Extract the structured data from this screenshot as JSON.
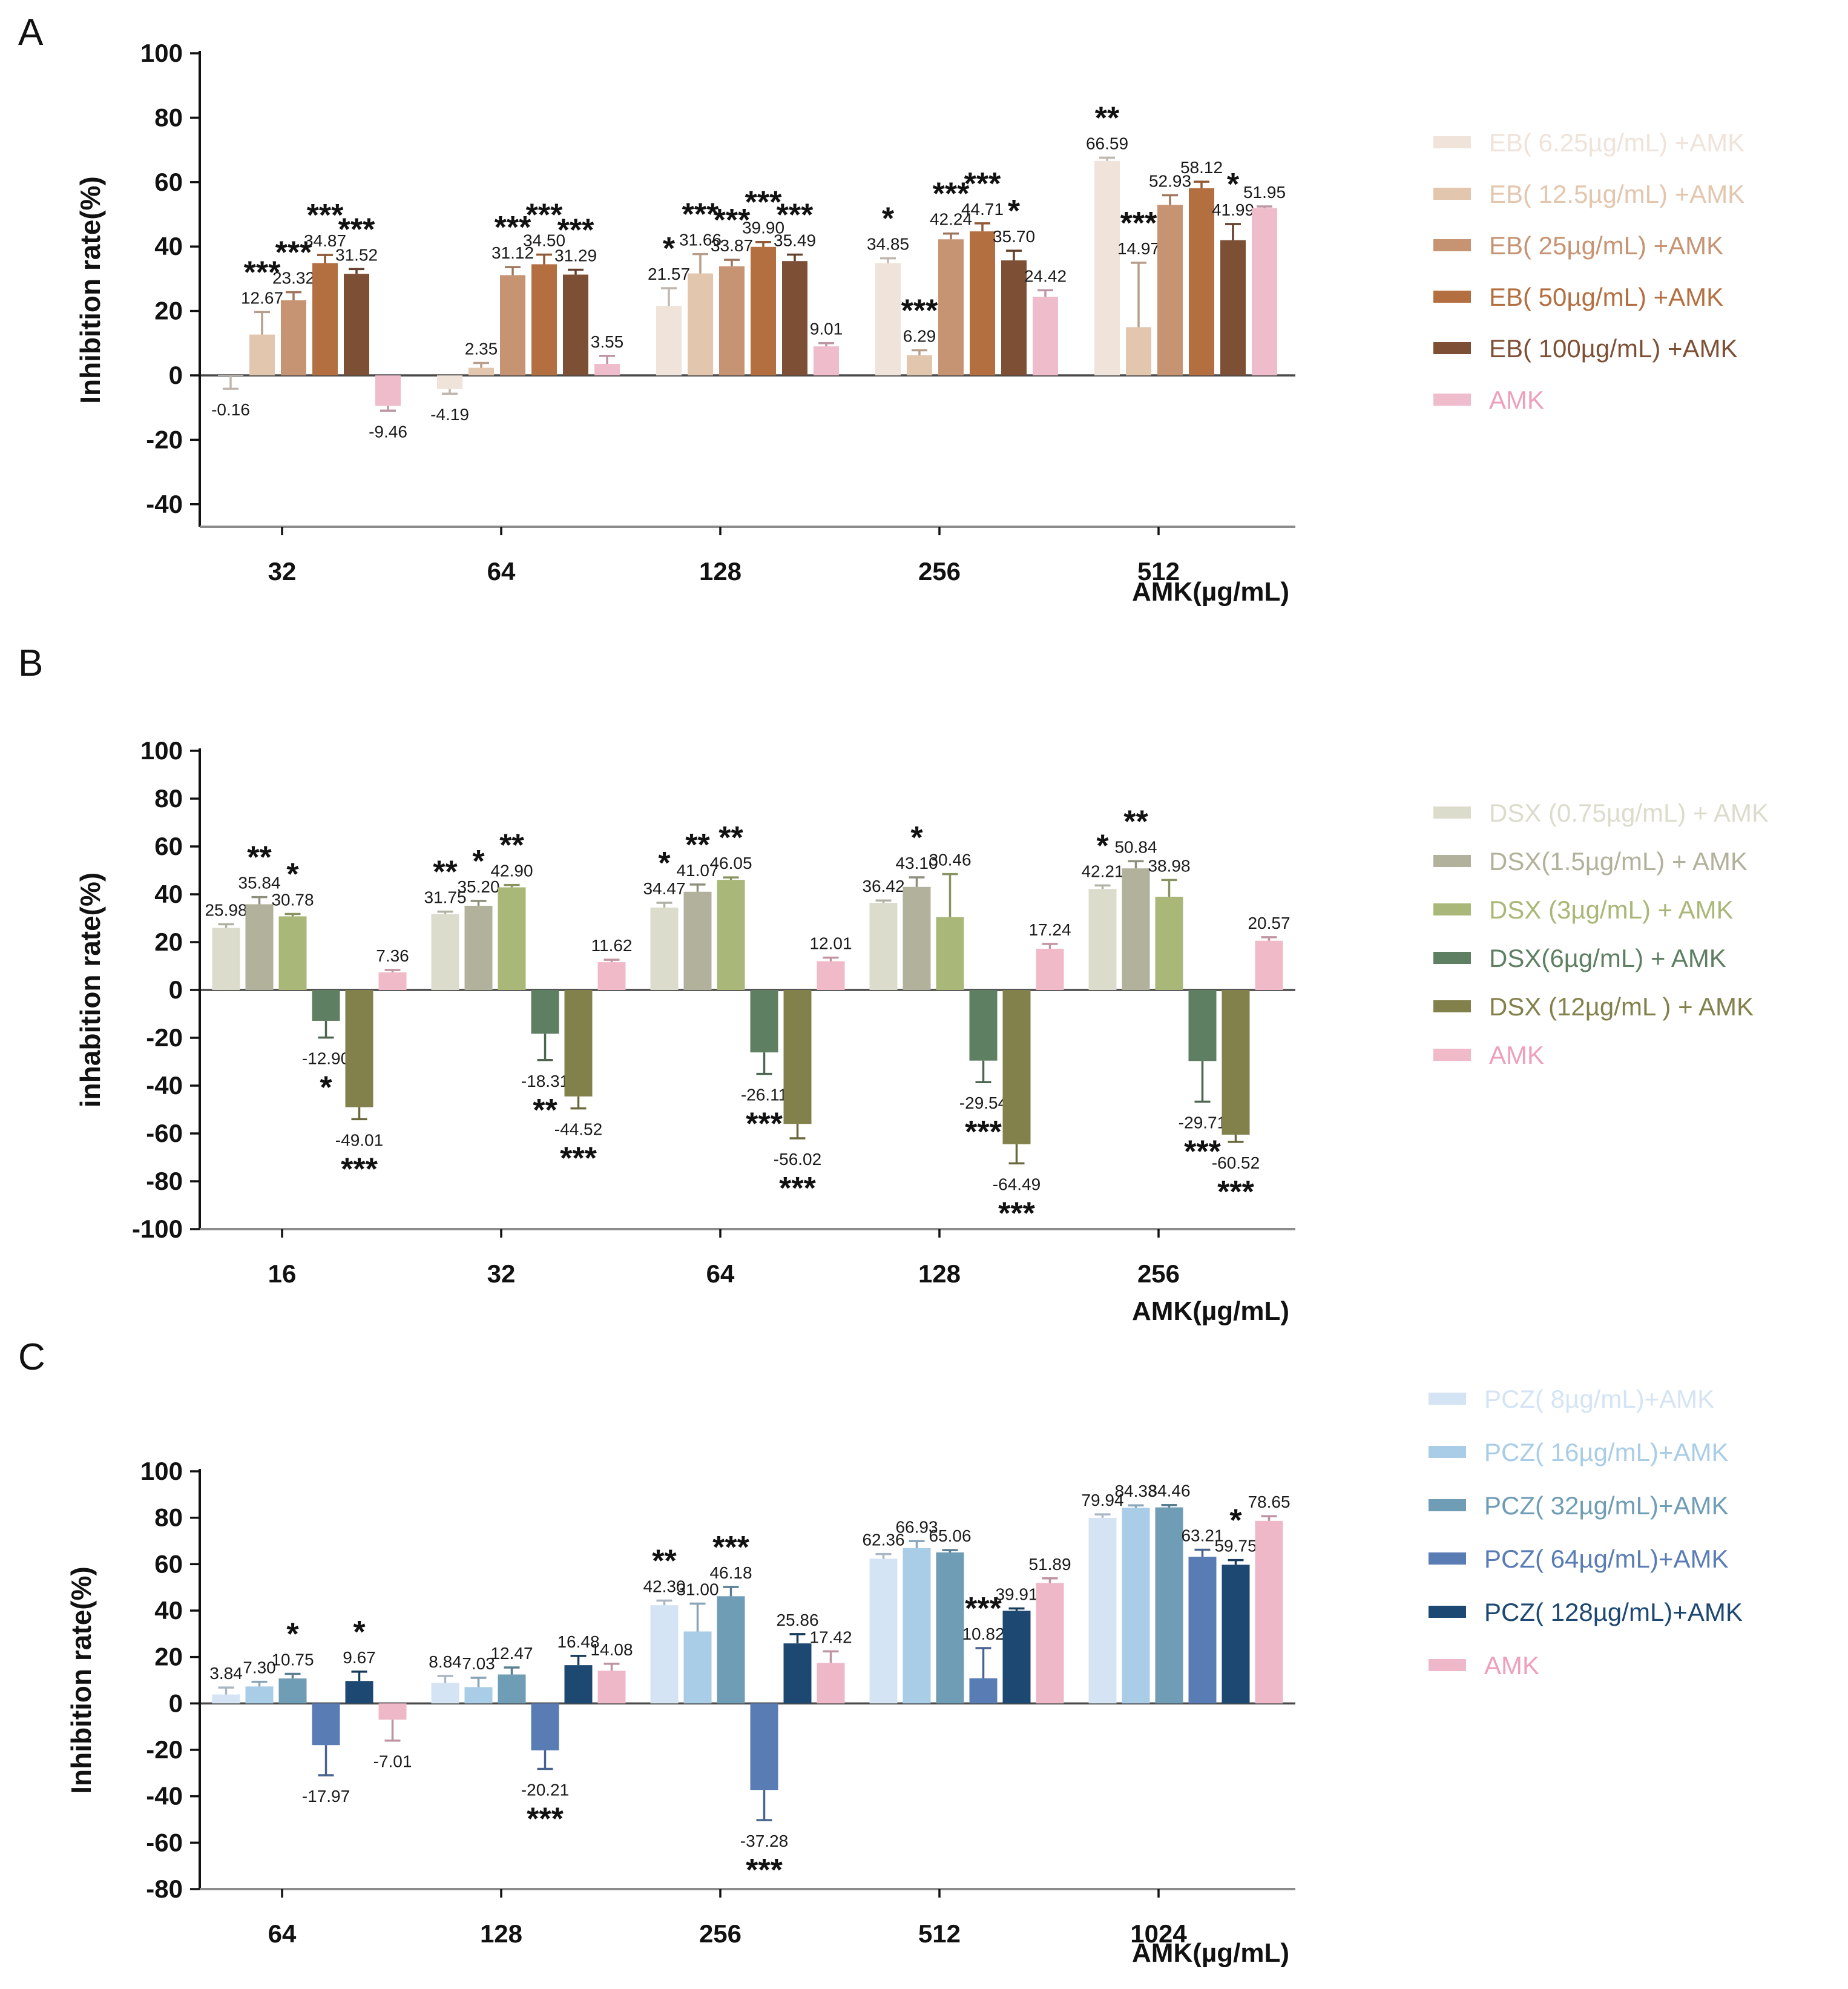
{
  "page": {
    "background": "#ffffff"
  },
  "chart_data": [
    {
      "panel_label": "A",
      "type": "bar",
      "title": "",
      "ylabel": "Inhibition rate(%)",
      "xlabel": "AMK(µg/mL)",
      "ylim": [
        -47,
        100
      ],
      "yticks": [
        100,
        80,
        60,
        40,
        20,
        0,
        -20,
        -40
      ],
      "categories": [
        "32",
        "64",
        "128",
        "256",
        "512"
      ],
      "grid": false,
      "legend_position": "right",
      "amk_legend_color": "#ee9fb9",
      "series": [
        {
          "name": "EB( 6.25µg/mL) +AMK",
          "color": "#efe3da",
          "values": [
            "-0.16",
            "-4.19",
            "21.57",
            "34.85",
            "66.59"
          ],
          "errors": [
            4,
            1.5,
            5.5,
            1.5,
            1
          ],
          "stars": [
            "",
            "",
            "*",
            "*",
            "**"
          ]
        },
        {
          "name": "EB( 12.5µg/mL) +AMK",
          "color": "#e3c6ae",
          "values": [
            "12.67",
            "2.35",
            "31.66",
            "6.29",
            "14.97"
          ],
          "errors": [
            7,
            1.5,
            6,
            1.5,
            20
          ],
          "stars": [
            "***",
            "",
            "***",
            "***",
            "***"
          ]
        },
        {
          "name": "EB( 25µg/mL) +AMK",
          "color": "#c69473",
          "values": [
            "23.32",
            "31.12",
            "33.87",
            "42.24",
            "52.93"
          ],
          "errors": [
            2.5,
            2.5,
            2,
            1.8,
            3
          ],
          "stars": [
            "***",
            "***",
            "***",
            "***",
            ""
          ]
        },
        {
          "name": "EB( 50µg/mL) +AMK",
          "color": "#b46f41",
          "values": [
            "34.87",
            "34.50",
            "39.90",
            "44.71",
            "58.12"
          ],
          "errors": [
            2.5,
            3,
            1.5,
            2.5,
            2
          ],
          "stars": [
            "***",
            "***",
            "***",
            "***",
            ""
          ]
        },
        {
          "name": "EB( 100µg/mL) +AMK",
          "color": "#7d5036",
          "values": [
            "31.52",
            "31.29",
            "35.49",
            "35.70",
            "41.99"
          ],
          "errors": [
            1.5,
            1.5,
            2,
            3,
            5
          ],
          "stars": [
            "***",
            "***",
            "***",
            "*",
            "*"
          ]
        },
        {
          "name": "AMK",
          "color": "#eebccb",
          "values": [
            "-9.46",
            "3.55",
            "9.01",
            "24.42",
            "51.95"
          ],
          "errors": [
            1.5,
            2.5,
            1,
            2,
            0.5
          ],
          "stars": [
            "",
            "",
            "",
            "",
            ""
          ]
        }
      ]
    },
    {
      "panel_label": "B",
      "type": "bar",
      "title": "",
      "ylabel": "inhabition rate(%)",
      "xlabel": "AMK(µg/mL)",
      "ylim": [
        -100,
        100
      ],
      "yticks": [
        100,
        80,
        60,
        40,
        20,
        0,
        -20,
        -40,
        -60,
        -80,
        -100
      ],
      "categories": [
        "16",
        "32",
        "64",
        "128",
        "256"
      ],
      "grid": false,
      "legend_position": "right",
      "amk_legend_color": "#ee9fb9",
      "series": [
        {
          "name": "DSX (0.75µg/mL) + AMK",
          "color": "#dcdccd",
          "values": [
            "25.98",
            "31.75",
            "34.47",
            "36.42",
            "42.21"
          ],
          "errors": [
            1.5,
            1,
            2,
            1,
            1.5
          ],
          "stars": [
            "",
            "**",
            "*",
            "",
            "*"
          ]
        },
        {
          "name": "DSX(1.5µg/mL) + AMK",
          "color": "#b2b29c",
          "values": [
            "35.84",
            "35.20",
            "41.07",
            "43.10",
            "50.84"
          ],
          "errors": [
            3,
            2,
            3,
            4,
            3
          ],
          "stars": [
            "**",
            "*",
            "**",
            "*",
            "**"
          ]
        },
        {
          "name": "DSX (3µg/mL) + AMK",
          "color": "#a9b878",
          "values": [
            "30.78",
            "42.90",
            "46.05",
            "30.46",
            "38.98"
          ],
          "errors": [
            1,
            1,
            1,
            18,
            7
          ],
          "stars": [
            "*",
            "**",
            "**",
            "",
            ""
          ]
        },
        {
          "name": "DSX(6µg/mL) + AMK",
          "color": "#5f7f63",
          "values": [
            "-12.90",
            "-18.31",
            "-26.11",
            "-29.54",
            "-29.71"
          ],
          "errors": [
            7,
            11,
            9,
            9,
            17
          ],
          "stars": [
            "*",
            "**",
            "***",
            "***",
            "***"
          ]
        },
        {
          "name": "DSX (12µg/mL ) + AMK",
          "color": "#83814b",
          "values": [
            "-49.01",
            "-44.52",
            "-56.02",
            "-64.49",
            "-60.52"
          ],
          "errors": [
            5,
            5,
            6,
            8,
            3
          ],
          "stars": [
            "***",
            "***",
            "***",
            "***",
            "***"
          ]
        },
        {
          "name": "AMK",
          "color": "#f1bac8",
          "values": [
            "7.36",
            "11.62",
            "12.01",
            "17.24",
            "20.57"
          ],
          "errors": [
            1,
            1,
            1.5,
            2,
            1.5
          ],
          "stars": [
            "",
            "",
            "",
            "",
            ""
          ]
        }
      ]
    },
    {
      "panel_label": "C",
      "type": "bar",
      "title": "",
      "ylabel": "Inhibition rate(%)",
      "xlabel": "AMK(µg/mL)",
      "ylim": [
        -80,
        100
      ],
      "yticks": [
        100,
        80,
        60,
        40,
        20,
        0,
        -20,
        -40,
        -60,
        -80
      ],
      "categories": [
        "64",
        "128",
        "256",
        "512",
        "1024"
      ],
      "grid": false,
      "legend_position": "right",
      "amk_legend_color": "#ee9fb9",
      "series": [
        {
          "name": "PCZ( 8µg/mL)+AMK",
          "color": "#d4e4f4",
          "values": [
            "3.84",
            "8.84",
            "42.30",
            "62.36",
            "79.94"
          ],
          "errors": [
            3,
            3,
            2,
            2,
            1.5
          ],
          "stars": [
            "",
            "",
            "**",
            "",
            ""
          ]
        },
        {
          "name": "PCZ( 16µg/mL)+AMK",
          "color": "#a9cde6",
          "values": [
            "7.30",
            "7.03",
            "31.00",
            "66.93",
            "84.33"
          ],
          "errors": [
            2,
            4,
            12,
            3,
            1
          ],
          "stars": [
            "",
            "",
            "",
            "",
            ""
          ]
        },
        {
          "name": "PCZ( 32µg/mL)+AMK",
          "color": "#6f9db6",
          "values": [
            "10.75",
            "12.47",
            "46.18",
            "65.06",
            "84.46"
          ],
          "errors": [
            2,
            3,
            4,
            1,
            1
          ],
          "stars": [
            "*",
            "",
            "***",
            "",
            ""
          ]
        },
        {
          "name": "PCZ( 64µg/mL)+AMK",
          "color": "#5a7cb4",
          "values": [
            "-17.97",
            "-20.21",
            "-37.28",
            "10.82",
            "63.21"
          ],
          "errors": [
            13,
            8,
            13,
            13,
            3
          ],
          "stars": [
            "",
            "***",
            "***",
            "***",
            ""
          ]
        },
        {
          "name": "PCZ( 128µg/mL)+AMK",
          "color": "#1c4871",
          "values": [
            "9.67",
            "16.48",
            "25.86",
            "39.91",
            "59.75"
          ],
          "errors": [
            4,
            4,
            4,
            1,
            2
          ],
          "stars": [
            "*",
            "",
            "",
            "",
            "*"
          ]
        },
        {
          "name": "AMK",
          "color": "#eeb8c8",
          "values": [
            "-7.01",
            "14.08",
            "17.42",
            "51.89",
            "78.65"
          ],
          "errors": [
            9,
            3,
            5,
            2,
            2
          ],
          "stars": [
            "",
            "",
            "",
            "",
            ""
          ]
        }
      ]
    }
  ]
}
